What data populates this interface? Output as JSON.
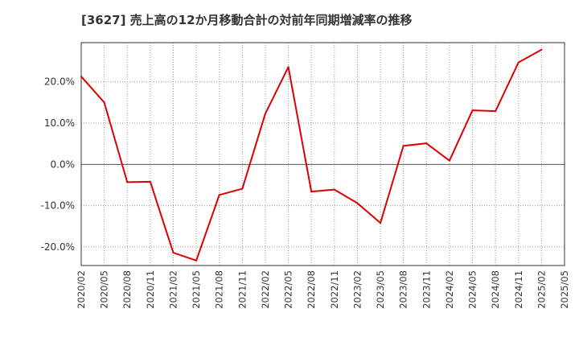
{
  "chart_data": {
    "type": "line",
    "title": "[3627]  売上高の12か月移動合計の対前年同期増減率の推移",
    "xlabel": "",
    "ylabel": "",
    "ylim": [
      -24.5,
      29.5
    ],
    "yticks": [
      -20,
      -10,
      0,
      10,
      20
    ],
    "ytick_labels": [
      "-20.0%",
      "-10.0%",
      "0.0%",
      "10.0%",
      "20.0%"
    ],
    "categories": [
      "2020/02",
      "2020/05",
      "2020/08",
      "2020/11",
      "2021/02",
      "2021/05",
      "2021/08",
      "2021/11",
      "2022/02",
      "2022/05",
      "2022/08",
      "2022/11",
      "2023/02",
      "2023/05",
      "2023/08",
      "2023/11",
      "2024/02",
      "2024/05",
      "2024/08",
      "2024/11",
      "2025/02",
      "2025/05"
    ],
    "series": [
      {
        "name": "対前年同期増減率",
        "color": "#dd0000",
        "values": [
          21.3,
          15.0,
          -4.3,
          -4.2,
          -21.4,
          -23.3,
          -7.4,
          -5.9,
          12.3,
          23.6,
          -6.6,
          -6.1,
          -9.4,
          -14.2,
          4.5,
          5.1,
          0.9,
          13.1,
          12.9,
          24.7,
          27.8,
          null
        ]
      }
    ],
    "grid": true,
    "legend": "none"
  }
}
